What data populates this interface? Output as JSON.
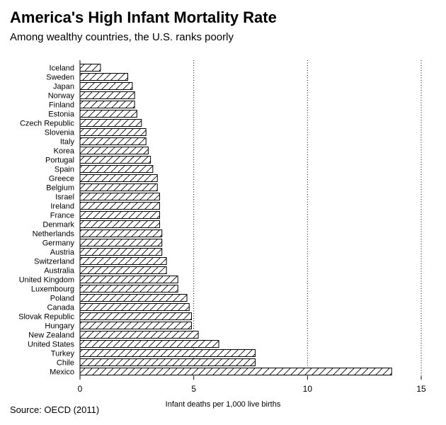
{
  "title": "America's High Infant Mortality Rate",
  "subtitle": "Among wealthy countries, the U.S. ranks poorly",
  "source": "Source: OECD (2011)",
  "chart_data": {
    "type": "bar",
    "orientation": "horizontal",
    "title": "America's High Infant Mortality Rate",
    "subtitle": "Among wealthy countries, the U.S. ranks poorly",
    "xlabel": "Infant deaths per 1,000 live births",
    "ylabel": "",
    "xlim": [
      0,
      15
    ],
    "xticks": [
      0,
      5,
      10,
      15
    ],
    "grid": "vertical dotted",
    "fill": "diagonal hatch",
    "categories": [
      "Iceland",
      "Sweden",
      "Japan",
      "Norway",
      "Finland",
      "Estonia",
      "Czech Republic",
      "Slovenia",
      "Italy",
      "Korea",
      "Portugal",
      "Spain",
      "Greece",
      "Belgium",
      "Israel",
      "Ireland",
      "France",
      "Denmark",
      "Netherlands",
      "Germany",
      "Austria",
      "Switzerland",
      "Australia",
      "United Kingdom",
      "Luxembourg",
      "Poland",
      "Canada",
      "Slovak Republic",
      "Hungary",
      "New Zealand",
      "United States",
      "Turkey",
      "Chile",
      "Mexico"
    ],
    "values": [
      0.9,
      2.1,
      2.3,
      2.4,
      2.4,
      2.5,
      2.7,
      2.9,
      2.9,
      3.0,
      3.1,
      3.2,
      3.4,
      3.4,
      3.5,
      3.5,
      3.5,
      3.5,
      3.6,
      3.6,
      3.6,
      3.8,
      3.8,
      4.3,
      4.3,
      4.7,
      4.8,
      4.9,
      4.9,
      5.2,
      6.1,
      7.7,
      7.7,
      13.7
    ]
  }
}
